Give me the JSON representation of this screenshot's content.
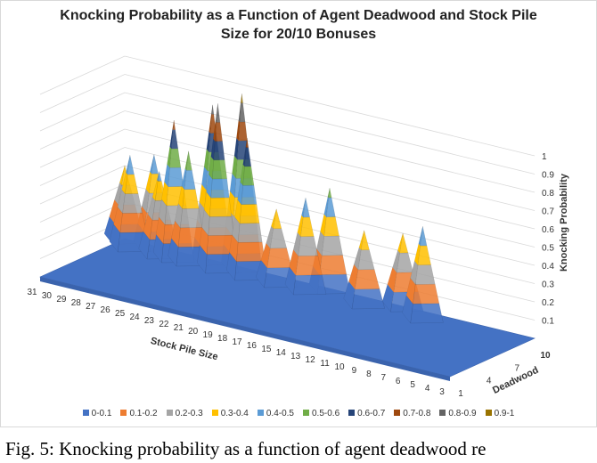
{
  "caption": "Fig. 5: Knocking probability as a function of agent deadwood re",
  "chart_data": {
    "type": "surface3d",
    "title_line1": "Knocking Probability as a Function of Agent Deadwood and Stock Pile",
    "title_line2": "Size for 20/10 Bonuses",
    "x_title": "Stock Pile Size",
    "y_title": "Deadwood",
    "z_title": "Knocking Probability",
    "x_ticks": [
      "31",
      "30",
      "29",
      "28",
      "27",
      "26",
      "25",
      "24",
      "23",
      "22",
      "21",
      "20",
      "19",
      "18",
      "17",
      "16",
      "15",
      "14",
      "13",
      "12",
      "11",
      "10",
      "9",
      "8",
      "7",
      "6",
      "5",
      "4",
      "3"
    ],
    "y_ticks": [
      "1",
      "4",
      "7",
      "10"
    ],
    "z_ticks": [
      "0.1",
      "0.2",
      "0.3",
      "0.4",
      "0.5",
      "0.6",
      "0.7",
      "0.8",
      "0.9",
      "1"
    ],
    "zlim": [
      0,
      1
    ],
    "legend": [
      {
        "label": "0-0.1",
        "color": "#4472c4"
      },
      {
        "label": "0.1-0.2",
        "color": "#ed7d31"
      },
      {
        "label": "0.2-0.3",
        "color": "#a5a5a5"
      },
      {
        "label": "0.3-0.4",
        "color": "#ffc000"
      },
      {
        "label": "0.4-0.5",
        "color": "#5b9bd5"
      },
      {
        "label": "0.5-0.6",
        "color": "#70ad47"
      },
      {
        "label": "0.6-0.7",
        "color": "#264478"
      },
      {
        "label": "0.7-0.8",
        "color": "#9e480e"
      },
      {
        "label": "0.8-0.9",
        "color": "#636363"
      },
      {
        "label": "0.9-1",
        "color": "#997300"
      }
    ],
    "peaks": [
      {
        "stock": 31,
        "deadwood": 10,
        "prob": 0.4
      },
      {
        "stock": 30,
        "deadwood": 9,
        "prob": 0.5
      },
      {
        "stock": 29,
        "deadwood": 10,
        "prob": 0.5
      },
      {
        "stock": 28,
        "deadwood": 9,
        "prob": 0.45
      },
      {
        "stock": 27,
        "deadwood": 9,
        "prob": 0.75
      },
      {
        "stock": 26,
        "deadwood": 9,
        "prob": 0.6
      },
      {
        "stock": 25,
        "deadwood": 10,
        "prob": 0.85
      },
      {
        "stock": 24,
        "deadwood": 9,
        "prob": 0.9
      },
      {
        "stock": 23,
        "deadwood": 10,
        "prob": 0.95
      },
      {
        "stock": 22,
        "deadwood": 9,
        "prob": 0.75
      },
      {
        "stock": 20,
        "deadwood": 9,
        "prob": 0.4
      },
      {
        "stock": 18,
        "deadwood": 9,
        "prob": 0.5
      },
      {
        "stock": 17,
        "deadwood": 10,
        "prob": 0.55
      },
      {
        "stock": 14,
        "deadwood": 9,
        "prob": 0.4
      },
      {
        "stock": 12,
        "deadwood": 10,
        "prob": 0.4
      },
      {
        "stock": 10,
        "deadwood": 9,
        "prob": 0.5
      }
    ]
  }
}
